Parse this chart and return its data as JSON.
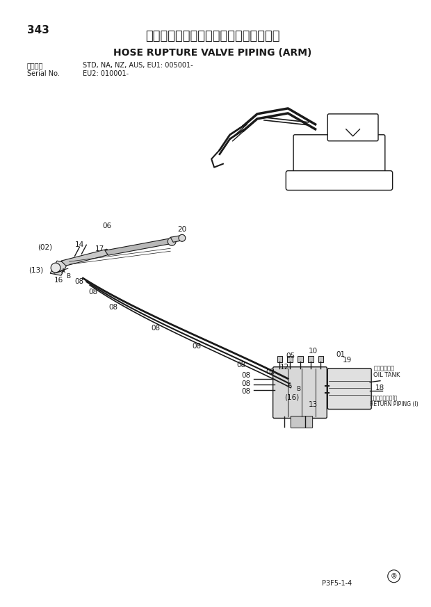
{
  "page_number": "343",
  "title_jp": "ホースラプチャーバルブ配管（アーム）",
  "title_en": "HOSE RUPTURE VALVE PIPING (ARM)",
  "applicable_label": "適用号機",
  "serial_label": "Serial No.",
  "applicable_info": "STD, NA, NZ, AUS, EU1: 005001-",
  "serial_info": "EU2: 010001-",
  "footer_code": "P3F5-1-4",
  "bg_color": "#ffffff",
  "line_color": "#1a1a1a",
  "text_color": "#1a1a1a"
}
